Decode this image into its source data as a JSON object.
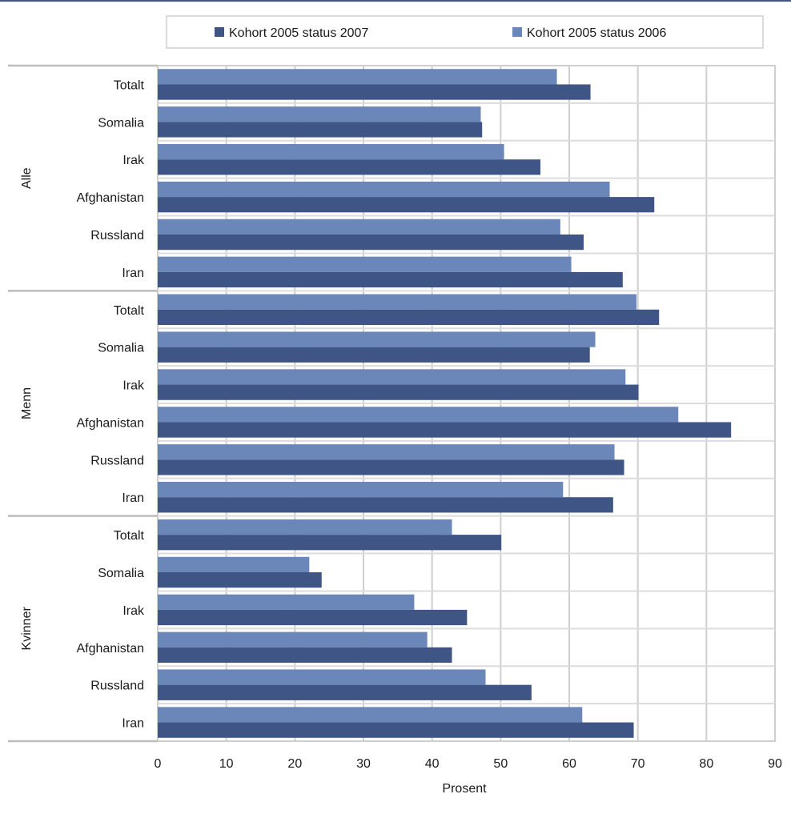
{
  "chart_data": {
    "type": "bar",
    "orientation": "horizontal",
    "xlabel": "Prosent",
    "xlim": [
      0,
      90
    ],
    "x_ticks": [
      0,
      10,
      20,
      30,
      40,
      50,
      60,
      70,
      80,
      90
    ],
    "grid": true,
    "legend": "top",
    "groups": [
      {
        "name": "Alle",
        "categories": [
          "Totalt",
          "Somalia",
          "Irak",
          "Afghanistan",
          "Russland",
          "Iran"
        ]
      },
      {
        "name": "Menn",
        "categories": [
          "Totalt",
          "Somalia",
          "Irak",
          "Afghanistan",
          "Russland",
          "Iran"
        ]
      },
      {
        "name": "Kvinner",
        "categories": [
          "Totalt",
          "Somalia",
          "Irak",
          "Afghanistan",
          "Russland",
          "Iran"
        ]
      }
    ],
    "series": [
      {
        "name": "Kohort 2005 status 2006",
        "color": "#6b86b8",
        "values": [
          58.2,
          47.1,
          50.5,
          65.9,
          58.7,
          60.3,
          69.8,
          63.8,
          68.2,
          75.9,
          66.6,
          59.1,
          42.9,
          22.1,
          37.4,
          39.3,
          47.8,
          61.9
        ]
      },
      {
        "name": "Kohort 2005 status 2007",
        "color": "#3e5585",
        "values": [
          63.1,
          47.3,
          55.8,
          72.4,
          62.1,
          67.8,
          73.1,
          63.0,
          70.1,
          83.6,
          68.0,
          66.4,
          50.1,
          23.9,
          45.1,
          42.9,
          54.5,
          69.4
        ]
      }
    ],
    "legend_order": [
      1,
      0
    ]
  }
}
